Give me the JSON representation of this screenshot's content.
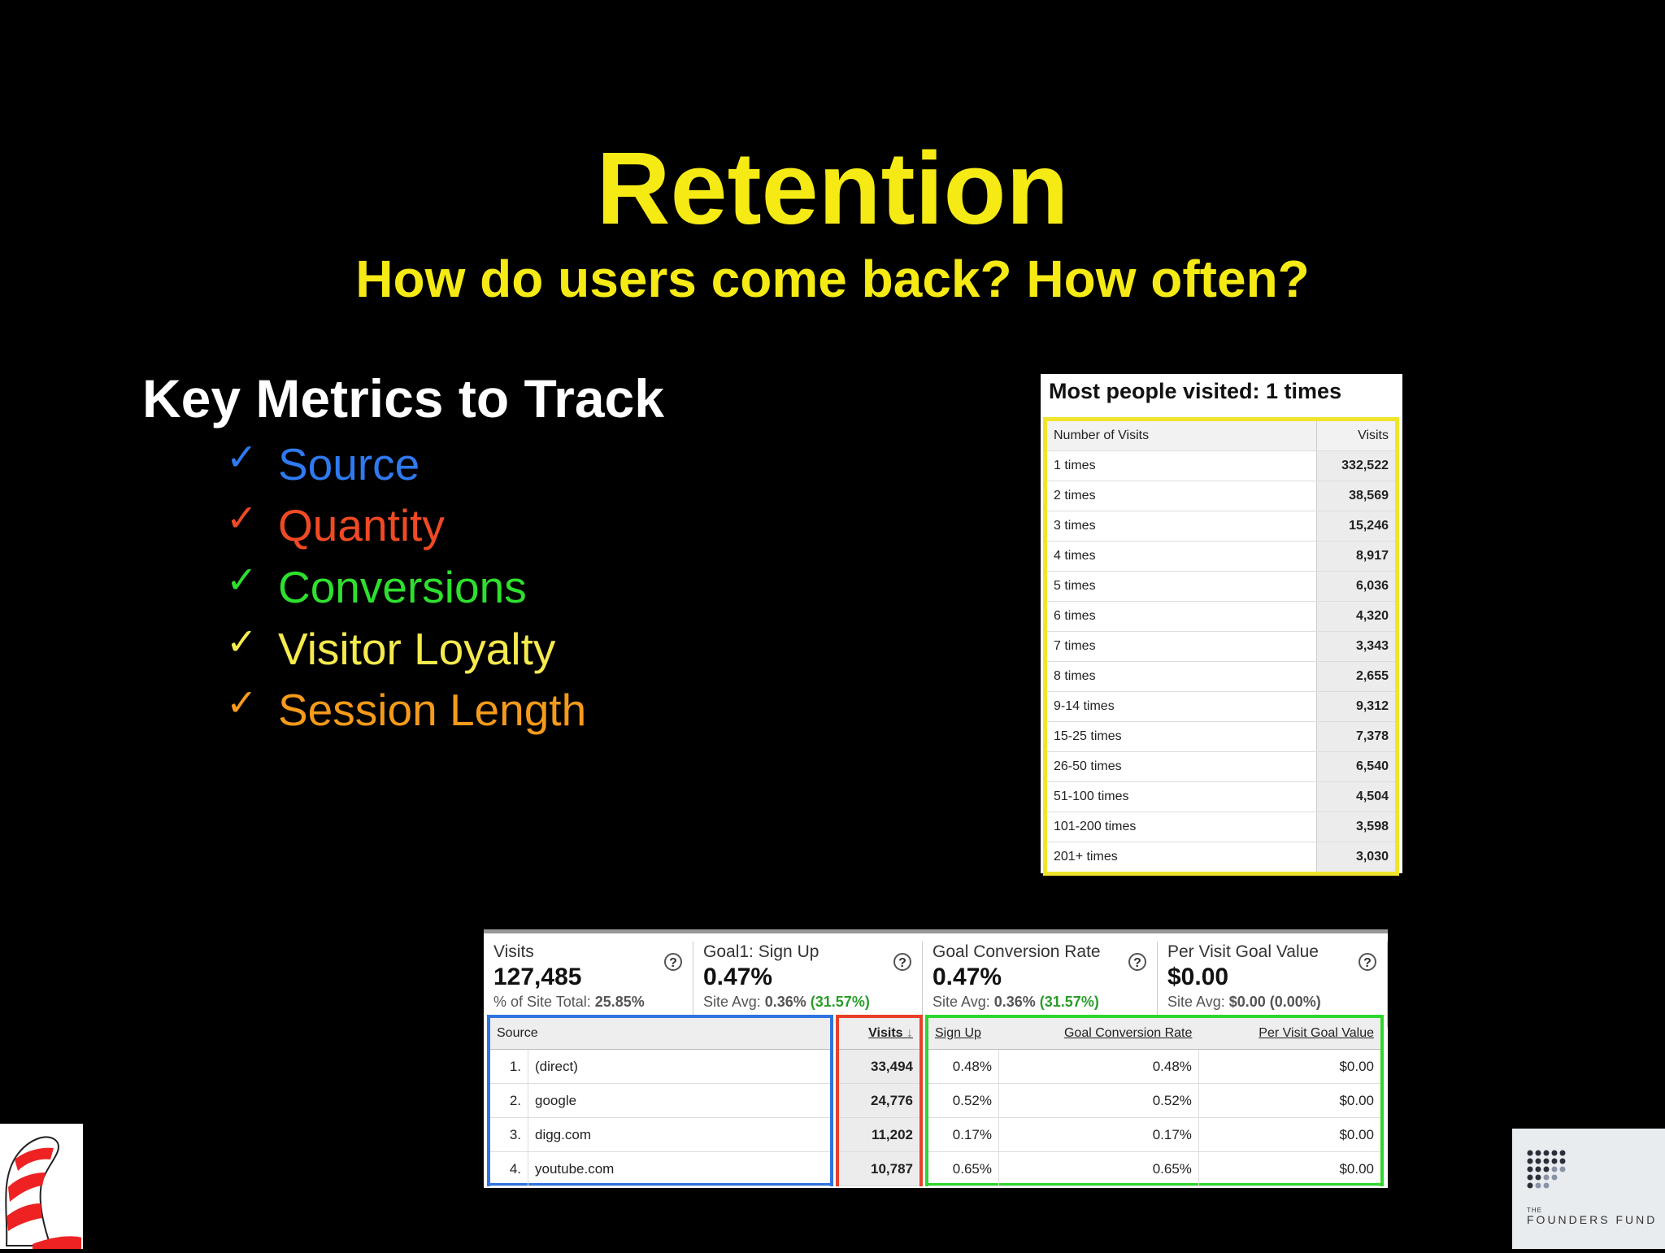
{
  "slide": {
    "title": "Retention",
    "subtitle": "How do users come back? How often?"
  },
  "metrics": {
    "heading": "Key Metrics to Track",
    "check_glyph": "✓",
    "items": [
      {
        "label": "Source",
        "color": "#2f7af0"
      },
      {
        "label": "Quantity",
        "color": "#f04a24"
      },
      {
        "label": "Conversions",
        "color": "#2ee02e"
      },
      {
        "label": "Visitor Loyalty",
        "color": "#f5ea4e"
      },
      {
        "label": "Session Length",
        "color": "#f59a1a"
      }
    ]
  },
  "loyalty": {
    "title": "Most people visited: 1 times",
    "col_number": "Number of Visits",
    "col_visits": "Visits",
    "rows": [
      {
        "label": "1 times",
        "value": "332,522"
      },
      {
        "label": "2 times",
        "value": "38,569"
      },
      {
        "label": "3 times",
        "value": "15,246"
      },
      {
        "label": "4 times",
        "value": "8,917"
      },
      {
        "label": "5 times",
        "value": "6,036"
      },
      {
        "label": "6 times",
        "value": "4,320"
      },
      {
        "label": "7 times",
        "value": "3,343"
      },
      {
        "label": "8 times",
        "value": "2,655"
      },
      {
        "label": "9-14 times",
        "value": "9,312"
      },
      {
        "label": "15-25 times",
        "value": "7,378"
      },
      {
        "label": "26-50 times",
        "value": "6,540"
      },
      {
        "label": "51-100 times",
        "value": "4,504"
      },
      {
        "label": "101-200 times",
        "value": "3,598"
      },
      {
        "label": "201+ times",
        "value": "3,030"
      }
    ]
  },
  "sources": {
    "summary": [
      {
        "label": "Visits",
        "value": "127,485",
        "sub_prefix": "% of Site Total: ",
        "sub_bold": "25.85%",
        "sub_green": ""
      },
      {
        "label": "Goal1: Sign Up",
        "value": "0.47%",
        "sub_prefix": "Site Avg: ",
        "sub_bold": "0.36%",
        "sub_green": "(31.57%)"
      },
      {
        "label": "Goal Conversion Rate",
        "value": "0.47%",
        "sub_prefix": "Site Avg: ",
        "sub_bold": "0.36%",
        "sub_green": "(31.57%)"
      },
      {
        "label": "Per Visit Goal Value",
        "value": "$0.00",
        "sub_prefix": "Site Avg: ",
        "sub_bold": "$0.00 (0.00%)",
        "sub_green": ""
      }
    ],
    "help_glyph": "?",
    "headers": {
      "source": "Source",
      "visits": "Visits",
      "sort_arrow": "↓",
      "signup": "Sign Up",
      "gcr": "Goal Conversion Rate",
      "pvgv": "Per Visit Goal Value"
    },
    "rows": [
      {
        "rank": "1.",
        "source": "(direct)",
        "visits": "33,494",
        "signup": "0.48%",
        "gcr": "0.48%",
        "pvgv": "$0.00"
      },
      {
        "rank": "2.",
        "source": "google",
        "visits": "24,776",
        "signup": "0.52%",
        "gcr": "0.52%",
        "pvgv": "$0.00"
      },
      {
        "rank": "3.",
        "source": "digg.com",
        "visits": "11,202",
        "signup": "0.17%",
        "gcr": "0.17%",
        "pvgv": "$0.00"
      },
      {
        "rank": "4.",
        "source": "youtube.com",
        "visits": "10,787",
        "signup": "0.65%",
        "gcr": "0.65%",
        "pvgv": "$0.00"
      }
    ],
    "box_colors": {
      "source": "#2f74e0",
      "visits": "#e8402a",
      "goals": "#2ed62e"
    }
  },
  "logos": {
    "left_icon": "cat-in-the-hat-hat",
    "right_small": "THE",
    "right_name": "FOUNDERS FUND"
  }
}
